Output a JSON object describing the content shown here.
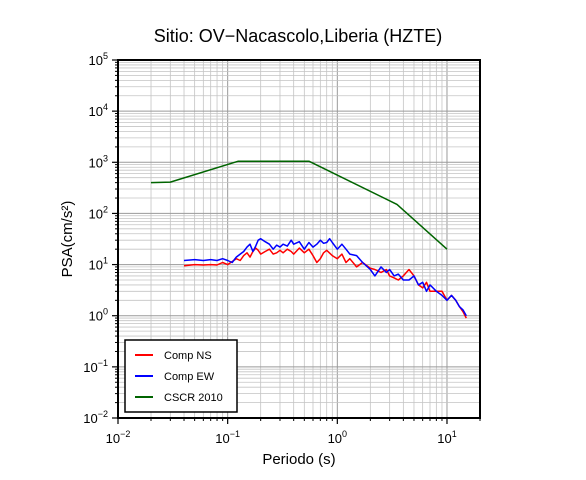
{
  "chart_data": {
    "type": "line",
    "title": "Sitio: OV−Nacascolo,Liberia (HZTE)",
    "xlabel": "Periodo (s)",
    "ylabel": "PSA(cm/s²)",
    "xscale": "log",
    "yscale": "log",
    "xlim": [
      0.01,
      20
    ],
    "ylim": [
      0.01,
      100000
    ],
    "grid": true,
    "legend_position": "bottom-left",
    "x_ticks": [
      {
        "value": 0.01,
        "base": "10",
        "exp": "−2"
      },
      {
        "value": 0.1,
        "base": "10",
        "exp": "−1"
      },
      {
        "value": 1,
        "base": "10",
        "exp": "0"
      },
      {
        "value": 10,
        "base": "10",
        "exp": "1"
      }
    ],
    "y_ticks": [
      {
        "value": 0.01,
        "base": "10",
        "exp": "−2"
      },
      {
        "value": 0.1,
        "base": "10",
        "exp": "−1"
      },
      {
        "value": 1,
        "base": "10",
        "exp": "0"
      },
      {
        "value": 10,
        "base": "10",
        "exp": "1"
      },
      {
        "value": 100,
        "base": "10",
        "exp": "2"
      },
      {
        "value": 1000,
        "base": "10",
        "exp": "3"
      },
      {
        "value": 10000,
        "base": "10",
        "exp": "4"
      },
      {
        "value": 100000,
        "base": "10",
        "exp": "5"
      }
    ],
    "series": [
      {
        "name": "Comp NS",
        "color": "#ff0000",
        "points": [
          [
            0.04,
            9.5
          ],
          [
            0.05,
            10
          ],
          [
            0.06,
            9.8
          ],
          [
            0.07,
            10
          ],
          [
            0.08,
            9.8
          ],
          [
            0.09,
            11
          ],
          [
            0.1,
            10
          ],
          [
            0.11,
            11.5
          ],
          [
            0.12,
            13
          ],
          [
            0.13,
            12
          ],
          [
            0.14,
            15
          ],
          [
            0.15,
            17
          ],
          [
            0.16,
            14
          ],
          [
            0.17,
            18
          ],
          [
            0.18,
            21
          ],
          [
            0.19,
            19
          ],
          [
            0.2,
            16
          ],
          [
            0.22,
            18
          ],
          [
            0.24,
            20
          ],
          [
            0.26,
            16
          ],
          [
            0.28,
            17
          ],
          [
            0.3,
            19
          ],
          [
            0.32,
            17
          ],
          [
            0.35,
            20
          ],
          [
            0.38,
            18
          ],
          [
            0.4,
            16
          ],
          [
            0.45,
            21
          ],
          [
            0.5,
            17
          ],
          [
            0.55,
            20
          ],
          [
            0.6,
            15
          ],
          [
            0.65,
            11
          ],
          [
            0.7,
            13
          ],
          [
            0.75,
            17
          ],
          [
            0.8,
            19
          ],
          [
            0.9,
            15
          ],
          [
            1.0,
            13
          ],
          [
            1.1,
            16
          ],
          [
            1.2,
            11
          ],
          [
            1.3,
            13
          ],
          [
            1.5,
            9
          ],
          [
            1.7,
            11
          ],
          [
            2.0,
            8.5
          ],
          [
            2.2,
            8
          ],
          [
            2.5,
            7
          ],
          [
            2.8,
            8
          ],
          [
            3.0,
            6
          ],
          [
            3.3,
            5.5
          ],
          [
            3.6,
            5
          ],
          [
            4.0,
            6
          ],
          [
            4.5,
            8
          ],
          [
            5.0,
            6
          ],
          [
            5.5,
            4
          ],
          [
            6.0,
            3.5
          ],
          [
            6.5,
            4.5
          ],
          [
            7.0,
            3
          ],
          [
            8.0,
            3
          ],
          [
            9.0,
            3
          ],
          [
            10.0,
            2
          ],
          [
            11.0,
            2.5
          ],
          [
            12.0,
            2
          ],
          [
            13.0,
            1.5
          ],
          [
            14.0,
            1.2
          ],
          [
            15.0,
            0.9
          ]
        ]
      },
      {
        "name": "Comp EW",
        "color": "#0000ff",
        "points": [
          [
            0.04,
            12
          ],
          [
            0.05,
            12.5
          ],
          [
            0.06,
            12
          ],
          [
            0.07,
            12.5
          ],
          [
            0.08,
            12
          ],
          [
            0.09,
            13
          ],
          [
            0.1,
            12
          ],
          [
            0.11,
            11
          ],
          [
            0.12,
            14
          ],
          [
            0.13,
            16
          ],
          [
            0.14,
            18
          ],
          [
            0.15,
            22
          ],
          [
            0.16,
            25
          ],
          [
            0.17,
            18
          ],
          [
            0.18,
            23
          ],
          [
            0.19,
            30
          ],
          [
            0.2,
            32
          ],
          [
            0.22,
            28
          ],
          [
            0.24,
            25
          ],
          [
            0.26,
            20
          ],
          [
            0.28,
            24
          ],
          [
            0.3,
            22
          ],
          [
            0.32,
            25
          ],
          [
            0.35,
            23
          ],
          [
            0.38,
            30
          ],
          [
            0.4,
            25
          ],
          [
            0.45,
            28
          ],
          [
            0.5,
            20
          ],
          [
            0.55,
            27
          ],
          [
            0.6,
            22
          ],
          [
            0.65,
            25
          ],
          [
            0.7,
            30
          ],
          [
            0.75,
            26
          ],
          [
            0.8,
            27
          ],
          [
            0.85,
            32
          ],
          [
            0.9,
            27
          ],
          [
            1.0,
            20
          ],
          [
            1.1,
            25
          ],
          [
            1.2,
            20
          ],
          [
            1.3,
            16
          ],
          [
            1.5,
            15
          ],
          [
            1.7,
            11
          ],
          [
            2.0,
            8
          ],
          [
            2.2,
            6
          ],
          [
            2.5,
            9
          ],
          [
            2.8,
            7
          ],
          [
            3.0,
            8
          ],
          [
            3.3,
            6
          ],
          [
            3.6,
            6.5
          ],
          [
            4.0,
            5
          ],
          [
            4.5,
            5
          ],
          [
            5.0,
            6
          ],
          [
            5.5,
            4
          ],
          [
            6.0,
            4.5
          ],
          [
            6.5,
            3
          ],
          [
            7.0,
            4
          ],
          [
            8.0,
            3
          ],
          [
            9.0,
            2.5
          ],
          [
            10.0,
            2
          ],
          [
            11.0,
            2.5
          ],
          [
            12.0,
            2
          ],
          [
            13.0,
            1.5
          ],
          [
            14.0,
            1.3
          ],
          [
            15.0,
            1.0
          ]
        ]
      },
      {
        "name": "CSCR 2010",
        "color": "#006400",
        "points": [
          [
            0.02,
            400
          ],
          [
            0.03,
            410
          ],
          [
            0.125,
            1050
          ],
          [
            0.55,
            1050
          ],
          [
            3.5,
            150
          ],
          [
            10.0,
            20
          ]
        ]
      }
    ]
  }
}
